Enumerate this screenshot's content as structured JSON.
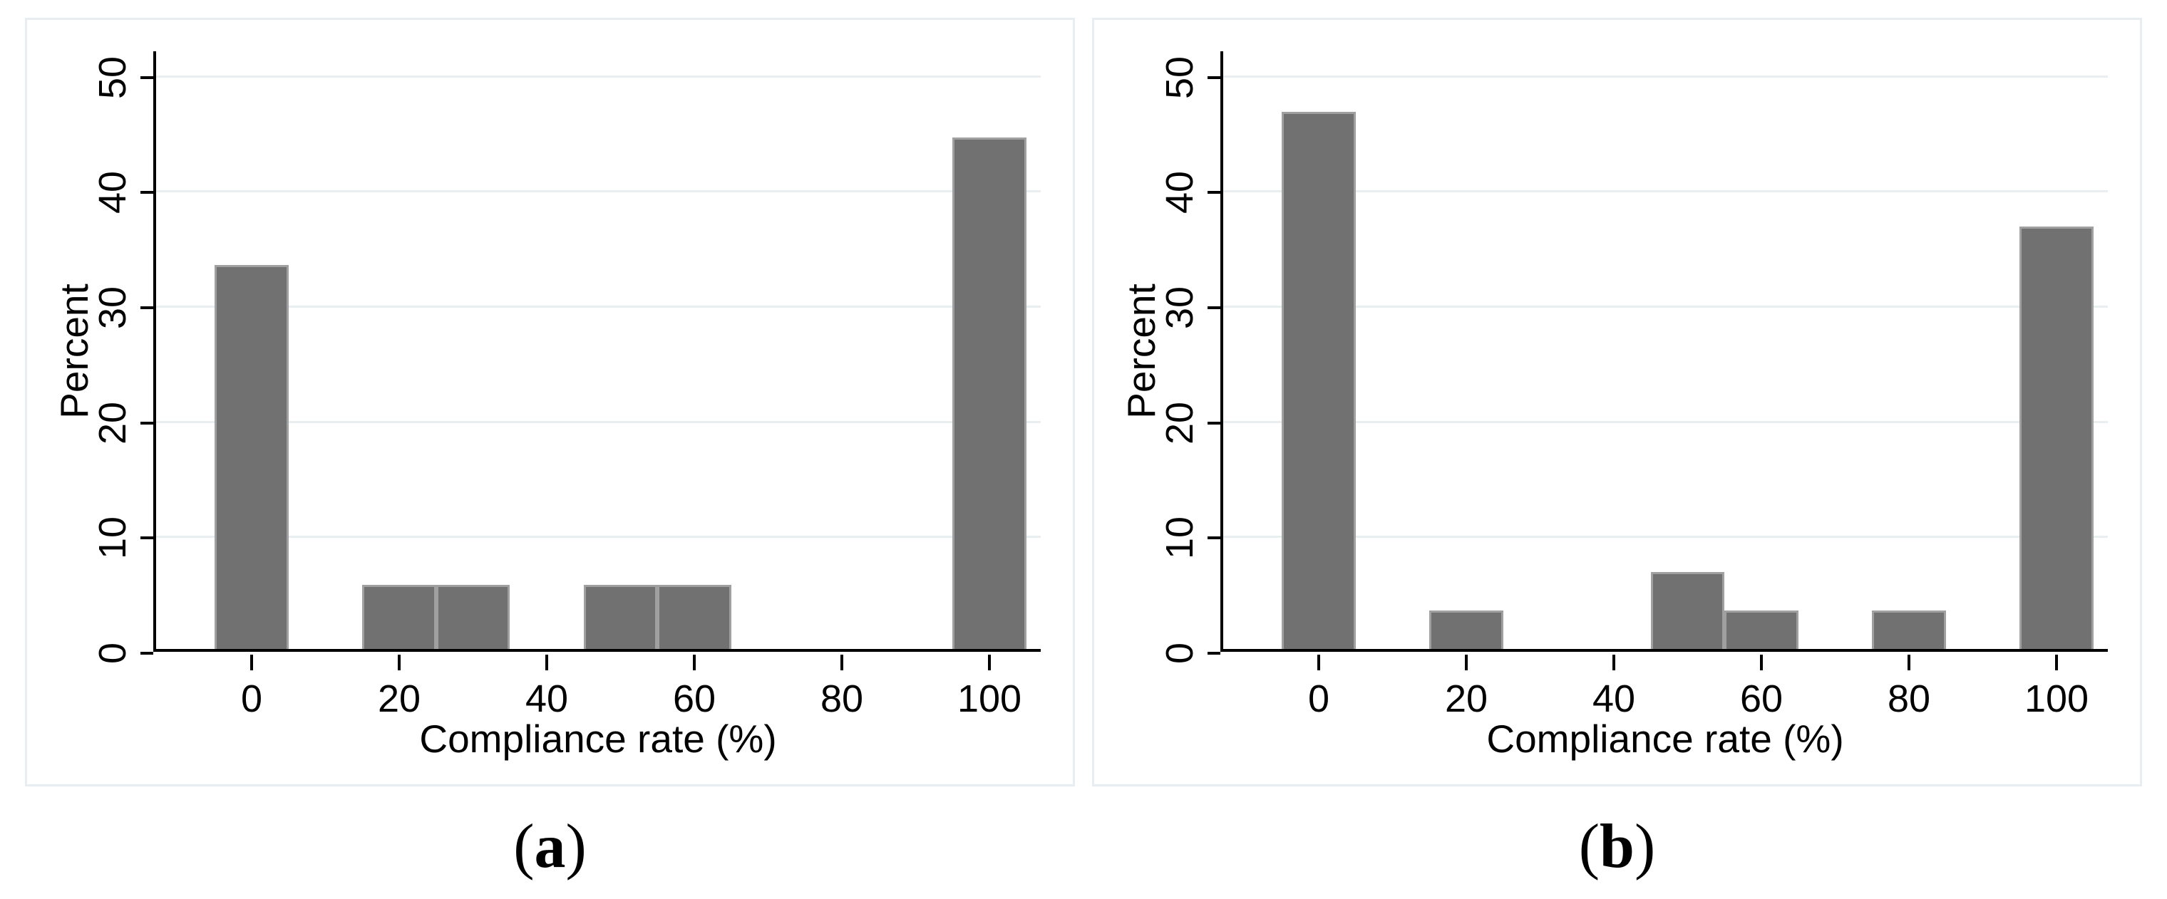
{
  "colors": {
    "bar_fill": "#717171",
    "bar_outline": "#a0a0a0",
    "gridline": "#e9eff1",
    "frame_border": "#e7edf0",
    "axis": "#000000",
    "text": "#000000",
    "background": "#ffffff"
  },
  "panels": [
    {
      "id": "a",
      "ylabel": "Percent",
      "xlabel": "Compliance rate (%)",
      "caption": "(a)",
      "caption_open": "(",
      "caption_letter": "a",
      "caption_close": ")"
    },
    {
      "id": "b",
      "ylabel": "Percent",
      "xlabel": "Compliance rate (%)",
      "caption": "(b)",
      "caption_open": "(",
      "caption_letter": "b",
      "caption_close": ")"
    }
  ],
  "chart_data": [
    {
      "type": "bar",
      "subtype": "histogram",
      "panel": "a",
      "title": "",
      "xlabel": "Compliance rate (%)",
      "ylabel": "Percent",
      "xticks": [
        0,
        20,
        40,
        60,
        80,
        100
      ],
      "yticks": [
        0,
        10,
        20,
        30,
        40,
        50
      ],
      "xlim": [
        -13,
        107
      ],
      "ylim": [
        0,
        52
      ],
      "grid": true,
      "legend": false,
      "bin_width": 10,
      "bins": [
        {
          "x0": -5,
          "x1": 5,
          "percent": 33.33
        },
        {
          "x0": 15,
          "x1": 25,
          "percent": 5.56
        },
        {
          "x0": 25,
          "x1": 35,
          "percent": 5.56
        },
        {
          "x0": 45,
          "x1": 55,
          "percent": 5.56
        },
        {
          "x0": 55,
          "x1": 65,
          "percent": 5.56
        },
        {
          "x0": 95,
          "x1": 105,
          "percent": 44.44
        }
      ]
    },
    {
      "type": "bar",
      "subtype": "histogram",
      "panel": "b",
      "title": "",
      "xlabel": "Compliance rate (%)",
      "ylabel": "Percent",
      "xticks": [
        0,
        20,
        40,
        60,
        80,
        100
      ],
      "yticks": [
        0,
        10,
        20,
        30,
        40,
        50
      ],
      "xlim": [
        -13,
        107
      ],
      "ylim": [
        0,
        52
      ],
      "grid": true,
      "legend": false,
      "bin_width": 10,
      "bins": [
        {
          "x0": -5,
          "x1": 5,
          "percent": 46.67
        },
        {
          "x0": 15,
          "x1": 25,
          "percent": 3.33
        },
        {
          "x0": 45,
          "x1": 55,
          "percent": 6.67
        },
        {
          "x0": 55,
          "x1": 65,
          "percent": 3.33
        },
        {
          "x0": 75,
          "x1": 85,
          "percent": 3.33
        },
        {
          "x0": 95,
          "x1": 105,
          "percent": 36.67
        }
      ]
    }
  ]
}
